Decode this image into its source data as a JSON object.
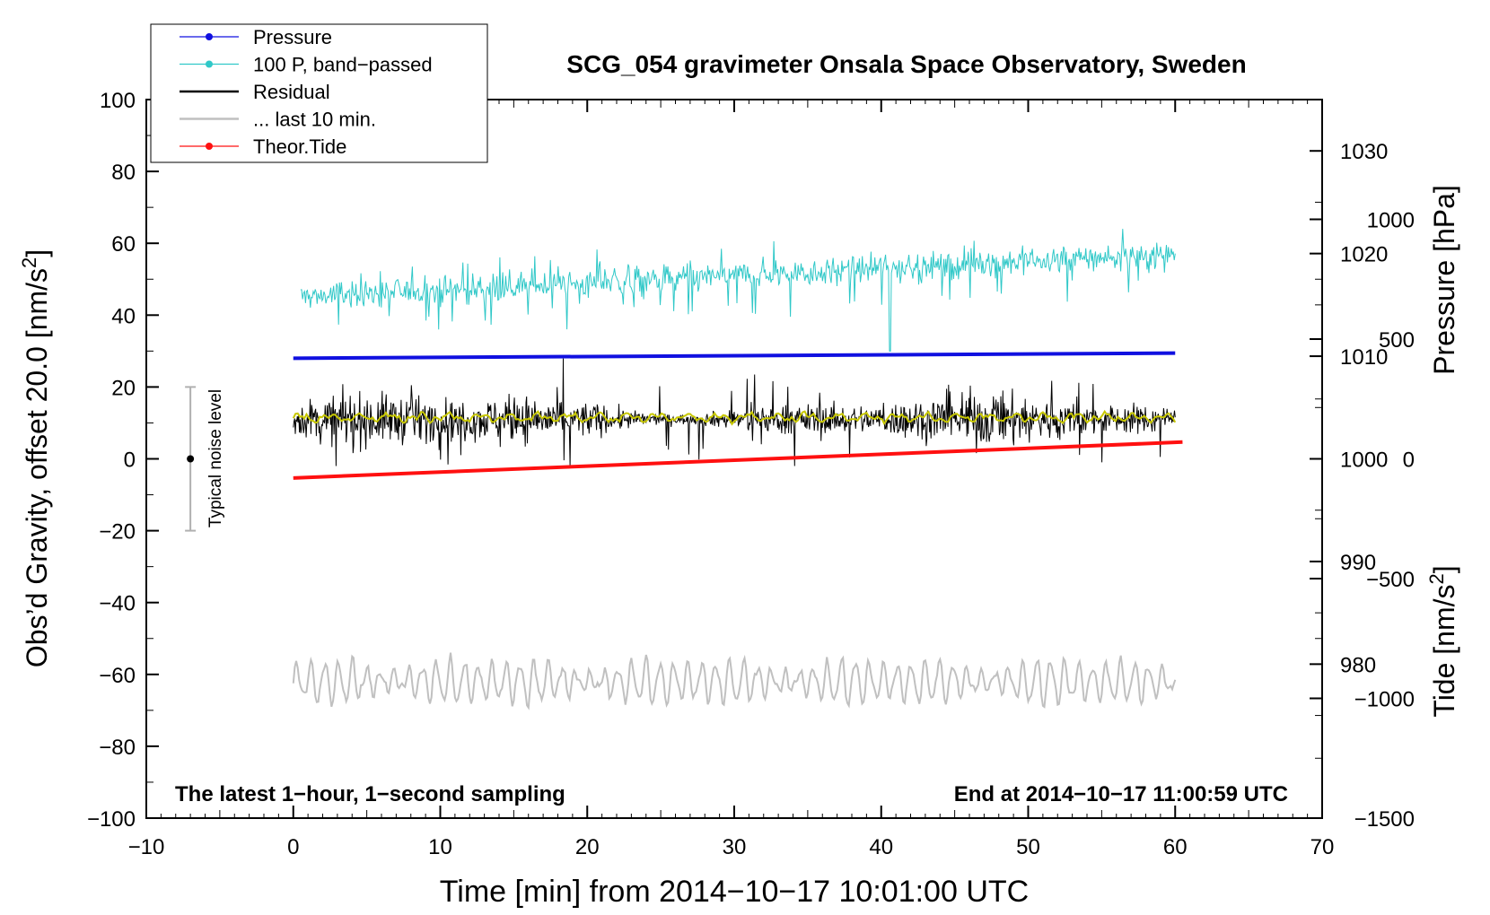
{
  "chart_data": {
    "type": "line",
    "title": "SCG_054 gravimeter Onsala Space Observatory, Sweden",
    "xlabel": "Time [min] from 2014−10−17 10:01:00 UTC",
    "ylabel_left": "Obs’d Gravity, offset 20.0 [nm/s²]",
    "ylabel_right_pressure": "Pressure [hPa]",
    "ylabel_right_tide": "Tide [nm/s²]",
    "xlim": [
      -10,
      70
    ],
    "ylim_left": [
      -100,
      100
    ],
    "ylim_pressure": [
      965,
      1035
    ],
    "ylim_tide": [
      -1500,
      1500
    ],
    "x_ticks": [
      "−10",
      "0",
      "10",
      "20",
      "30",
      "40",
      "50",
      "60",
      "70"
    ],
    "y_ticks_left": [
      "−100",
      "−80",
      "−60",
      "−40",
      "−20",
      "0",
      "20",
      "40",
      "60",
      "80",
      "100"
    ],
    "pressure_ticks": [
      "980",
      "990",
      "1000",
      "1010",
      "1020",
      "1030"
    ],
    "tide_ticks": [
      "−1500",
      "−1000",
      "−500",
      "0",
      "500",
      "1000"
    ],
    "annotation_left": "The latest 1−hour, 1−second sampling",
    "annotation_right": "End at 2014−10−17 11:00:59 UTC",
    "noise_bar_label": "Typical noise level",
    "noise_bar": {
      "x": -7,
      "center": 0,
      "low": -20,
      "high": 20
    },
    "legend": [
      {
        "label": "Pressure",
        "color": "#1010e0",
        "marker": true
      },
      {
        "label": "100 P, band−passed",
        "color": "#30c8c8",
        "marker": true
      },
      {
        "label": "Residual",
        "color": "#000000",
        "marker": false
      },
      {
        "label": "... last 10 min.",
        "color": "#c0c0c0",
        "marker": false
      },
      {
        "label": "Theor.Tide",
        "color": "#ff1010",
        "marker": true
      }
    ],
    "series": [
      {
        "name": "Pressure",
        "axis": "pressure",
        "color": "#1010e0",
        "x": [
          0,
          60
        ],
        "y": [
          1009.8,
          1010.3
        ]
      },
      {
        "name": "100 P, band−passed",
        "axis": "left",
        "color": "#30c8c8",
        "mean_start": 45,
        "mean_end": 57,
        "x_range": [
          0.5,
          60
        ],
        "approx_range": [
          30,
          64
        ]
      },
      {
        "name": "Residual",
        "axis": "left",
        "color": "#000000",
        "mean": 11,
        "x_range": [
          0,
          60
        ],
        "approx_range": [
          -2,
          28
        ]
      },
      {
        "name": "Residual smoothed",
        "axis": "left",
        "color": "#c8c800",
        "mean": 11.5,
        "x_range": [
          0,
          60
        ]
      },
      {
        "name": "Theor.Tide",
        "axis": "tide",
        "color": "#ff1010",
        "x": [
          0,
          60.5
        ],
        "y": [
          -80,
          70
        ]
      },
      {
        "name": "... last 10 min.",
        "axis": "left",
        "color": "#c0c0c0",
        "x_range": [
          0,
          60
        ],
        "approx_range": [
          -73,
          -52
        ]
      }
    ],
    "grid": false,
    "legend_placement": "top-left"
  }
}
